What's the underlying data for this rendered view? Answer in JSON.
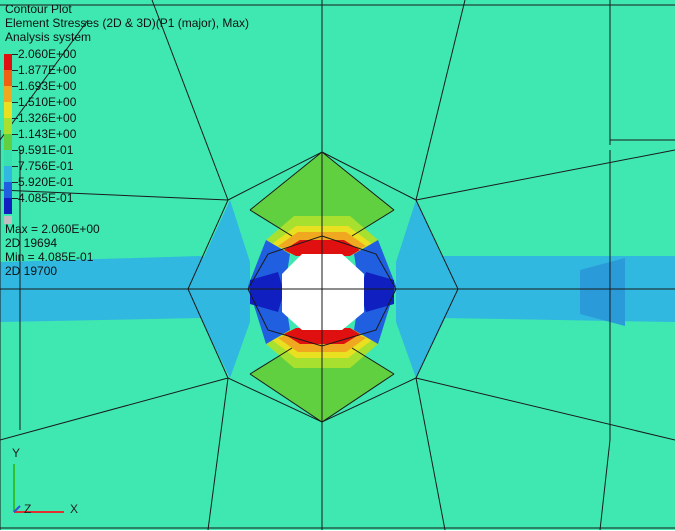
{
  "header": {
    "title": "Contour Plot",
    "result": "Element Stresses (2D & 3D)(P1 (major), Max)",
    "system": "Analysis system"
  },
  "legend": {
    "entries": [
      {
        "label": "2.060E+00",
        "color": "#e01010"
      },
      {
        "label": "1.877E+00",
        "color": "#f06010"
      },
      {
        "label": "1.693E+00",
        "color": "#f0a820"
      },
      {
        "label": "1.510E+00",
        "color": "#e8e020"
      },
      {
        "label": "1.326E+00",
        "color": "#a8e030"
      },
      {
        "label": "1.143E+00",
        "color": "#60d040"
      },
      {
        "label": "9.591E-01",
        "color": "#38e0b0"
      },
      {
        "label": "7.756E-01",
        "color": "#30b8e0"
      },
      {
        "label": "5.920E-01",
        "color": "#2060e0"
      },
      {
        "label": "4.085E-01",
        "color": "#1020c0"
      }
    ],
    "no_result_color": "#c0c0c0"
  },
  "stats": {
    "max": "Max = 2.060E+00",
    "max_elem": "2D 19694",
    "min": "Min = 4.085E-01",
    "min_elem": "2D 19700"
  },
  "triad": {
    "y": "Y",
    "z": "Z",
    "x": "X"
  },
  "colors": {
    "background_field": "#3ee8b0",
    "horizontal_band": "#30b8e0",
    "green_zone": "#60d040",
    "hole": "#ffffff",
    "mesh_lines": "#1a1a1a"
  }
}
